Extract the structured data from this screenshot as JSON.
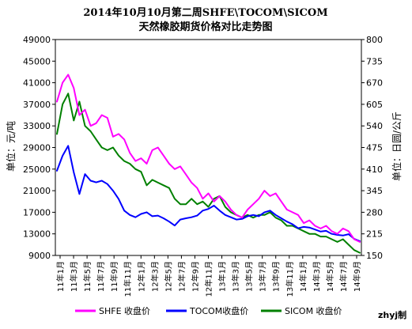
{
  "chart_data": {
    "type": "line",
    "title": "2014年10月10月第二周SHFE\\TOCOM\\SICOM",
    "subtitle": "天然橡胶期货价格对比走势图",
    "ylabel_left": "单位：元/吨",
    "ylabel_right": "单位：日圆/公斤",
    "y_left": {
      "min": 9000,
      "max": 49000,
      "ticks": [
        "49000",
        "45000",
        "41000",
        "37000",
        "33000",
        "29000",
        "25000",
        "21000",
        "17000",
        "13000",
        "9000"
      ]
    },
    "y_right": {
      "min": 150,
      "max": 800,
      "ticks": [
        "800",
        "735",
        "670",
        "605",
        "540",
        "475",
        "410",
        "345",
        "280",
        "215",
        "150"
      ]
    },
    "x_ticks": [
      "11年1月",
      "11年3月",
      "11年5月",
      "11年7月",
      "11年9月",
      "11年11月",
      "12年1月",
      "12年3月",
      "12年5月",
      "12年7月",
      "12年9月",
      "12年11月",
      "13年1月",
      "13年3月",
      "13年5月",
      "13年7月",
      "13年9月",
      "13年11月",
      "14年1月",
      "14年3月",
      "14年5月",
      "14年7月",
      "14年9月"
    ],
    "series": [
      {
        "name": "SHFE 收盘价",
        "axis": "left",
        "color": "#ff00ff",
        "values": [
          37500,
          41000,
          42500,
          40000,
          35000,
          36000,
          33000,
          33500,
          35000,
          34500,
          31000,
          31500,
          30500,
          28000,
          26500,
          27000,
          26000,
          28500,
          29000,
          27500,
          26000,
          25000,
          25500,
          24000,
          22500,
          21500,
          19500,
          20500,
          19000,
          20000,
          19000,
          17500,
          16500,
          16000,
          17500,
          18500,
          19500,
          21000,
          20000,
          20500,
          19000,
          17500,
          17000,
          16500,
          15000,
          15500,
          14500,
          14000,
          14500,
          13500,
          13000,
          14000,
          13500,
          12000,
          11500
        ]
      },
      {
        "name": "TOCOM收盘价",
        "axis": "right",
        "color": "#0000ff",
        "values": [
          405,
          450,
          480,
          400,
          335,
          395,
          375,
          370,
          375,
          365,
          345,
          320,
          285,
          272,
          265,
          275,
          280,
          268,
          270,
          262,
          252,
          240,
          258,
          262,
          265,
          270,
          285,
          290,
          300,
          285,
          272,
          265,
          258,
          260,
          268,
          272,
          268,
          280,
          285,
          272,
          262,
          252,
          244,
          232,
          236,
          234,
          228,
          222,
          224,
          215,
          212,
          210,
          214,
          200,
          193
        ]
      },
      {
        "name": "SICOM 收盘价",
        "axis": "left",
        "color": "#008000",
        "values": [
          31500,
          37000,
          39000,
          34000,
          37500,
          33000,
          32000,
          30500,
          29000,
          28500,
          29000,
          27500,
          26500,
          26000,
          25000,
          24500,
          22000,
          23000,
          22500,
          22000,
          21500,
          19500,
          18500,
          18500,
          19500,
          18500,
          19000,
          18000,
          19500,
          20000,
          18000,
          17000,
          16500,
          16000,
          16500,
          16000,
          16500,
          16500,
          17000,
          16000,
          15500,
          14500,
          14500,
          14000,
          13500,
          13000,
          13000,
          12500,
          12500,
          12000,
          11500,
          12000,
          11000,
          10000,
          9500
        ]
      }
    ],
    "legend_position": "bottom",
    "grid": false
  },
  "credit": "zhyj制"
}
